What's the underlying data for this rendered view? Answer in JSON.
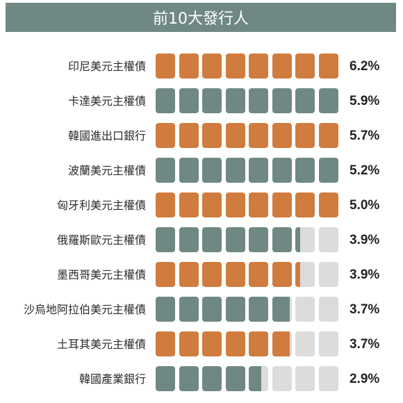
{
  "header": {
    "title": "前10大發行人"
  },
  "colors": {
    "orange": "#d07c3e",
    "teal": "#6f8883",
    "empty": "#dcdcdc"
  },
  "chart_data": {
    "type": "bar",
    "title": "前10大發行人",
    "unit": "%",
    "cell_value": 0.625,
    "cell_count": 8,
    "categories": [
      "印尼美元主權債",
      "卡達美元主權債",
      "韓國進出口銀行",
      "波蘭美元主權債",
      "匈牙利美元主權債",
      "俄羅斯歐元主權債",
      "墨西哥美元主權債",
      "沙烏地阿拉伯美元主權債",
      "土耳其美元主權債",
      "韓國產業銀行"
    ],
    "values": [
      6.2,
      5.9,
      5.7,
      5.2,
      5.0,
      3.9,
      3.9,
      3.7,
      3.7,
      2.9
    ],
    "value_labels": [
      "6.2%",
      "5.9%",
      "5.7%",
      "5.2%",
      "5.0%",
      "3.9%",
      "3.9%",
      "3.7%",
      "3.7%",
      "2.9%"
    ],
    "bar_colors": [
      "orange",
      "teal",
      "orange",
      "teal",
      "orange",
      "teal",
      "orange",
      "teal",
      "orange",
      "teal"
    ]
  }
}
